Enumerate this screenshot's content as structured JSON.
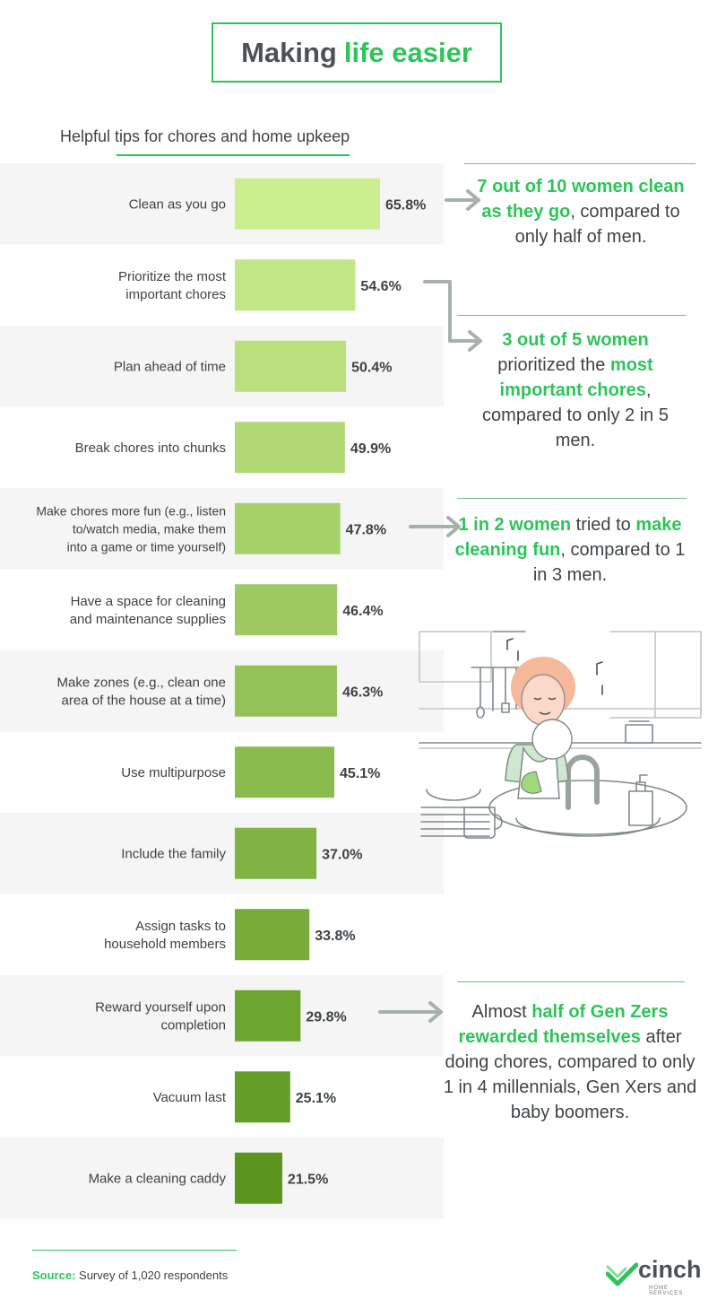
{
  "header": {
    "title_part1": "Making",
    "title_part2": "life easier",
    "subtitle": "Helpful tips for chores and home upkeep"
  },
  "colors": {
    "accent": "#2ec45a",
    "bar_lightest": "#cdee8f",
    "bar_darkest": "#5a961e",
    "row_stripe": "#f5f5f5",
    "arrow": "#a7b1ab"
  },
  "chart_data": {
    "type": "bar",
    "orientation": "horizontal",
    "title": "Helpful tips for chores and home upkeep",
    "categories": [
      [
        "Clean as you go"
      ],
      [
        "Prioritize the most",
        "important chores"
      ],
      [
        "Plan ahead of time"
      ],
      [
        "Break chores into chunks"
      ],
      [
        "Make chores more fun (e.g., listen",
        "to/watch media, make them",
        "into a game or time yourself)"
      ],
      [
        "Have a space for cleaning",
        "and maintenance supplies"
      ],
      [
        "Make zones (e.g., clean one",
        "area of the house at a time)"
      ],
      [
        "Use multipurpose"
      ],
      [
        "Include the family"
      ],
      [
        "Assign tasks to",
        "household members"
      ],
      [
        "Reward yourself upon",
        "completion"
      ],
      [
        "Vacuum last"
      ],
      [
        "Make a cleaning caddy"
      ]
    ],
    "values": [
      65.8,
      54.6,
      50.4,
      49.9,
      47.8,
      46.4,
      46.3,
      45.1,
      37.0,
      33.8,
      29.8,
      25.1,
      21.5
    ],
    "value_labels": [
      "65.8%",
      "54.6%",
      "50.4%",
      "49.9%",
      "47.8%",
      "46.4%",
      "46.3%",
      "45.1%",
      "37.0%",
      "33.8%",
      "29.8%",
      "25.1%",
      "21.5%"
    ],
    "unit": "%",
    "xlim": [
      0,
      100
    ]
  },
  "annotations": {
    "a1": {
      "b1": "7 out of 10 women clean as they go",
      "t1": ", compared to only half of men."
    },
    "a2": {
      "b1": "3 out of 5 women",
      "t1": " prioritized the ",
      "b2": "most important chores",
      "t2": ", compared to only 2 in 5 men."
    },
    "a3": {
      "b1": "1 in 2 women",
      "t1": " tried to ",
      "b2": "make cleaning fun",
      "t2": ", compared to 1 in 3 men."
    },
    "a4": {
      "t0": "Almost ",
      "b1": "half of Gen Zers rewarded themselves",
      "t1": " after doing chores, compared to only 1 in 4 millennials, Gen Xers and baby boomers."
    }
  },
  "footer": {
    "source_label": "Source:",
    "source_text": " Survey of 1,020 respondents",
    "logo_text": "cinch",
    "logo_sub": "HOME SERVICES"
  }
}
